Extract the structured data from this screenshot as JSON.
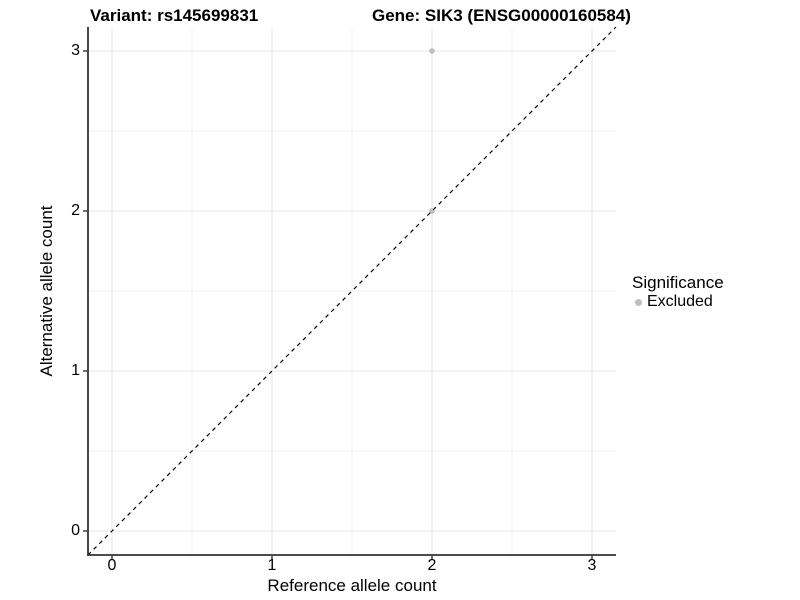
{
  "chart_data": {
    "type": "scatter",
    "title_left": "Variant: rs145699831",
    "title_right": "Gene: SIK3 (ENSG00000160584)",
    "xlabel": "Reference allele count",
    "ylabel": "Alternative allele count",
    "xlim": [
      -0.15,
      3.15
    ],
    "ylim": [
      -0.15,
      3.15
    ],
    "xticks": [
      0,
      1,
      2,
      3
    ],
    "yticks": [
      0,
      1,
      2,
      3
    ],
    "grid": "major+minor",
    "points": [
      {
        "x": 2,
        "y": 3,
        "significance": "Excluded"
      },
      {
        "x": 2,
        "y": 2,
        "significance": "Excluded"
      }
    ],
    "abline": {
      "slope": 1,
      "intercept": 0,
      "style": "dashed",
      "color": "#000000"
    },
    "legend": {
      "title": "Significance",
      "position": "right",
      "items": [
        {
          "label": "Excluded",
          "color": "#bebebe"
        }
      ]
    },
    "colors": {
      "point": "#bebebe",
      "grid_major": "#e5e5e5",
      "grid_minor": "#f2f2f2",
      "axis_line": "#333333",
      "tick_mark": "#333333",
      "text": "#000000",
      "background": "#ffffff"
    }
  }
}
